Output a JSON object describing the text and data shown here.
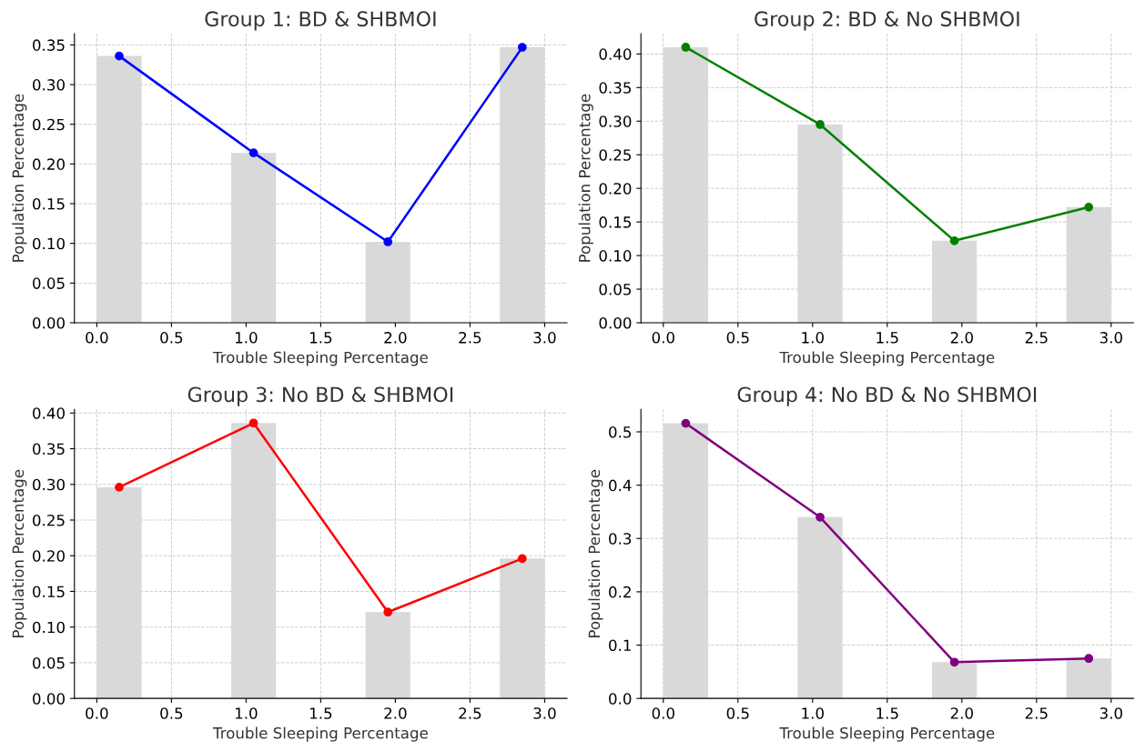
{
  "chart_data": [
    {
      "type": "histogram",
      "title": "Group 1: BD & SHBMOI",
      "xlabel": "Trouble Sleeping Percentage",
      "ylabel": "Population Percentage",
      "bins": [
        0,
        0.3,
        0.6,
        0.9,
        1.2,
        1.5,
        1.8,
        2.1,
        2.4,
        2.7,
        3.0
      ],
      "values": [
        0.336,
        0,
        0,
        0.214,
        0,
        0,
        0.102,
        0,
        0,
        0.347
      ],
      "color": "#d9d9d9",
      "series": [
        {
          "type": "line",
          "color": "#0000ff",
          "x": [
            0.15,
            1.05,
            1.95,
            2.85
          ],
          "values": [
            0.336,
            0.214,
            0.102,
            0.347
          ]
        }
      ],
      "xlim": [
        -0.15,
        3.15
      ],
      "xticks": [
        {
          "value": 0,
          "label": "0.0"
        },
        0.5,
        {
          "value": 1,
          "label": "1.0"
        },
        1.5,
        {
          "value": 2,
          "label": "2.0"
        },
        2.5,
        {
          "value": 3,
          "label": "3.0"
        }
      ],
      "ylim": [
        0,
        0.364
      ],
      "yticks": [
        {
          "value": 0,
          "label": "0.00"
        },
        0.05,
        {
          "value": 0.1,
          "label": "0.10"
        },
        0.15,
        {
          "value": 0.2,
          "label": "0.20"
        },
        0.25,
        {
          "value": 0.3,
          "label": "0.30"
        },
        0.35
      ],
      "grid": true,
      "marker": "circle",
      "line_style": "solid"
    },
    {
      "type": "histogram",
      "title": "Group 2: BD & No SHBMOI",
      "xlabel": "Trouble Sleeping Percentage",
      "ylabel": "Population Percentage",
      "bins": [
        0,
        0.3,
        0.6,
        0.9,
        1.2,
        1.5,
        1.8,
        2.1,
        2.4,
        2.7,
        3.0
      ],
      "values": [
        0.41,
        0,
        0,
        0.295,
        0,
        0,
        0.122,
        0,
        0,
        0.172
      ],
      "color": "#d9d9d9",
      "series": [
        {
          "type": "line",
          "color": "#008000",
          "x": [
            0.15,
            1.05,
            1.95,
            2.85
          ],
          "values": [
            0.41,
            0.295,
            0.122,
            0.172
          ]
        }
      ],
      "xlim": [
        -0.15,
        3.15
      ],
      "xticks": [
        {
          "value": 0,
          "label": "0.0"
        },
        0.5,
        {
          "value": 1,
          "label": "1.0"
        },
        1.5,
        {
          "value": 2,
          "label": "2.0"
        },
        2.5,
        {
          "value": 3,
          "label": "3.0"
        }
      ],
      "ylim": [
        0,
        0.43
      ],
      "yticks": [
        {
          "value": 0,
          "label": "0.00"
        },
        0.05,
        {
          "value": 0.1,
          "label": "0.10"
        },
        0.15,
        {
          "value": 0.2,
          "label": "0.20"
        },
        0.25,
        {
          "value": 0.3,
          "label": "0.30"
        },
        0.35,
        {
          "value": 0.4,
          "label": "0.40"
        }
      ],
      "grid": true,
      "marker": "circle",
      "line_style": "solid"
    },
    {
      "type": "histogram",
      "title": "Group 3: No BD & SHBMOI",
      "xlabel": "Trouble Sleeping Percentage",
      "ylabel": "Population Percentage",
      "bins": [
        0,
        0.3,
        0.6,
        0.9,
        1.2,
        1.5,
        1.8,
        2.1,
        2.4,
        2.7,
        3.0
      ],
      "values": [
        0.296,
        0,
        0,
        0.386,
        0,
        0,
        0.121,
        0,
        0,
        0.196
      ],
      "color": "#d9d9d9",
      "series": [
        {
          "type": "line",
          "color": "#ff0000",
          "x": [
            0.15,
            1.05,
            1.95,
            2.85
          ],
          "values": [
            0.296,
            0.386,
            0.121,
            0.196
          ]
        }
      ],
      "xlim": [
        -0.15,
        3.15
      ],
      "xticks": [
        {
          "value": 0,
          "label": "0.0"
        },
        0.5,
        {
          "value": 1,
          "label": "1.0"
        },
        1.5,
        {
          "value": 2,
          "label": "2.0"
        },
        2.5,
        {
          "value": 3,
          "label": "3.0"
        }
      ],
      "ylim": [
        0,
        0.405
      ],
      "yticks": [
        {
          "value": 0,
          "label": "0.00"
        },
        0.05,
        {
          "value": 0.1,
          "label": "0.10"
        },
        0.15,
        {
          "value": 0.2,
          "label": "0.20"
        },
        0.25,
        {
          "value": 0.3,
          "label": "0.30"
        },
        0.35,
        {
          "value": 0.4,
          "label": "0.40"
        }
      ],
      "grid": true,
      "marker": "circle",
      "line_style": "solid"
    },
    {
      "type": "histogram",
      "title": "Group 4: No BD & No SHBMOI",
      "xlabel": "Trouble Sleeping Percentage",
      "ylabel": "Population Percentage",
      "bins": [
        0,
        0.3,
        0.6,
        0.9,
        1.2,
        1.5,
        1.8,
        2.1,
        2.4,
        2.7,
        3.0
      ],
      "values": [
        0.516,
        0,
        0,
        0.34,
        0,
        0,
        0.068,
        0,
        0,
        0.075
      ],
      "color": "#d9d9d9",
      "series": [
        {
          "type": "line",
          "color": "#800080",
          "x": [
            0.15,
            1.05,
            1.95,
            2.85
          ],
          "values": [
            0.516,
            0.34,
            0.068,
            0.075
          ]
        }
      ],
      "xlim": [
        -0.15,
        3.15
      ],
      "xticks": [
        {
          "value": 0,
          "label": "0.0"
        },
        0.5,
        {
          "value": 1,
          "label": "1.0"
        },
        1.5,
        {
          "value": 2,
          "label": "2.0"
        },
        2.5,
        {
          "value": 3,
          "label": "3.0"
        }
      ],
      "ylim": [
        0,
        0.542
      ],
      "yticks": [
        {
          "value": 0,
          "label": "0.0"
        },
        0.1,
        0.2,
        0.3,
        0.4,
        0.5
      ],
      "grid": true,
      "marker": "circle",
      "line_style": "solid"
    }
  ]
}
